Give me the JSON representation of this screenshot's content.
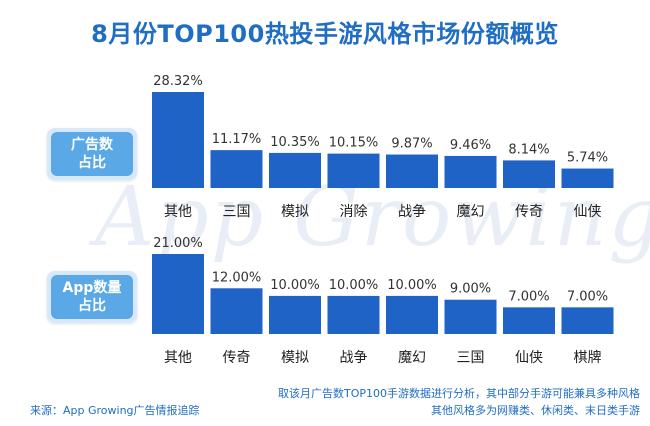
{
  "title": "8月份TOP100热投手游风格市场份额概览",
  "watermark": "App Growing",
  "badges": [
    {
      "line1": "广告数",
      "line2": "占比"
    },
    {
      "line1": "App数量",
      "line2": "占比"
    }
  ],
  "footer": {
    "source": "来源：App Growing广告情报追踪",
    "note_line1": "取该月广告数TOP100手游数据进行分析，其中部分手游可能兼具多种风格",
    "note_line2": "其他风格多为网赚类、休闲类、末日类手游"
  },
  "colors": {
    "bar": "#1f63c6",
    "title": "#1f6ec4",
    "badge": "#5aa9e6"
  },
  "chart_data": [
    {
      "type": "bar",
      "title": "广告数占比",
      "categories": [
        "其他",
        "三国",
        "模拟",
        "消除",
        "战争",
        "魔幻",
        "传奇",
        "仙侠"
      ],
      "values": [
        28.32,
        11.17,
        10.35,
        10.15,
        9.87,
        9.46,
        8.14,
        5.74
      ],
      "labels": [
        "28.32%",
        "11.17%",
        "10.35%",
        "10.15%",
        "9.87%",
        "9.46%",
        "8.14%",
        "5.74%"
      ],
      "unit": "%"
    },
    {
      "type": "bar",
      "title": "App数量占比",
      "categories": [
        "其他",
        "传奇",
        "模拟",
        "战争",
        "魔幻",
        "三国",
        "仙侠",
        "棋牌"
      ],
      "values": [
        21.0,
        12.0,
        10.0,
        10.0,
        10.0,
        9.0,
        7.0,
        7.0
      ],
      "labels": [
        "21.00%",
        "12.00%",
        "10.00%",
        "10.00%",
        "10.00%",
        "9.00%",
        "7.00%",
        "7.00%"
      ],
      "unit": "%"
    }
  ]
}
